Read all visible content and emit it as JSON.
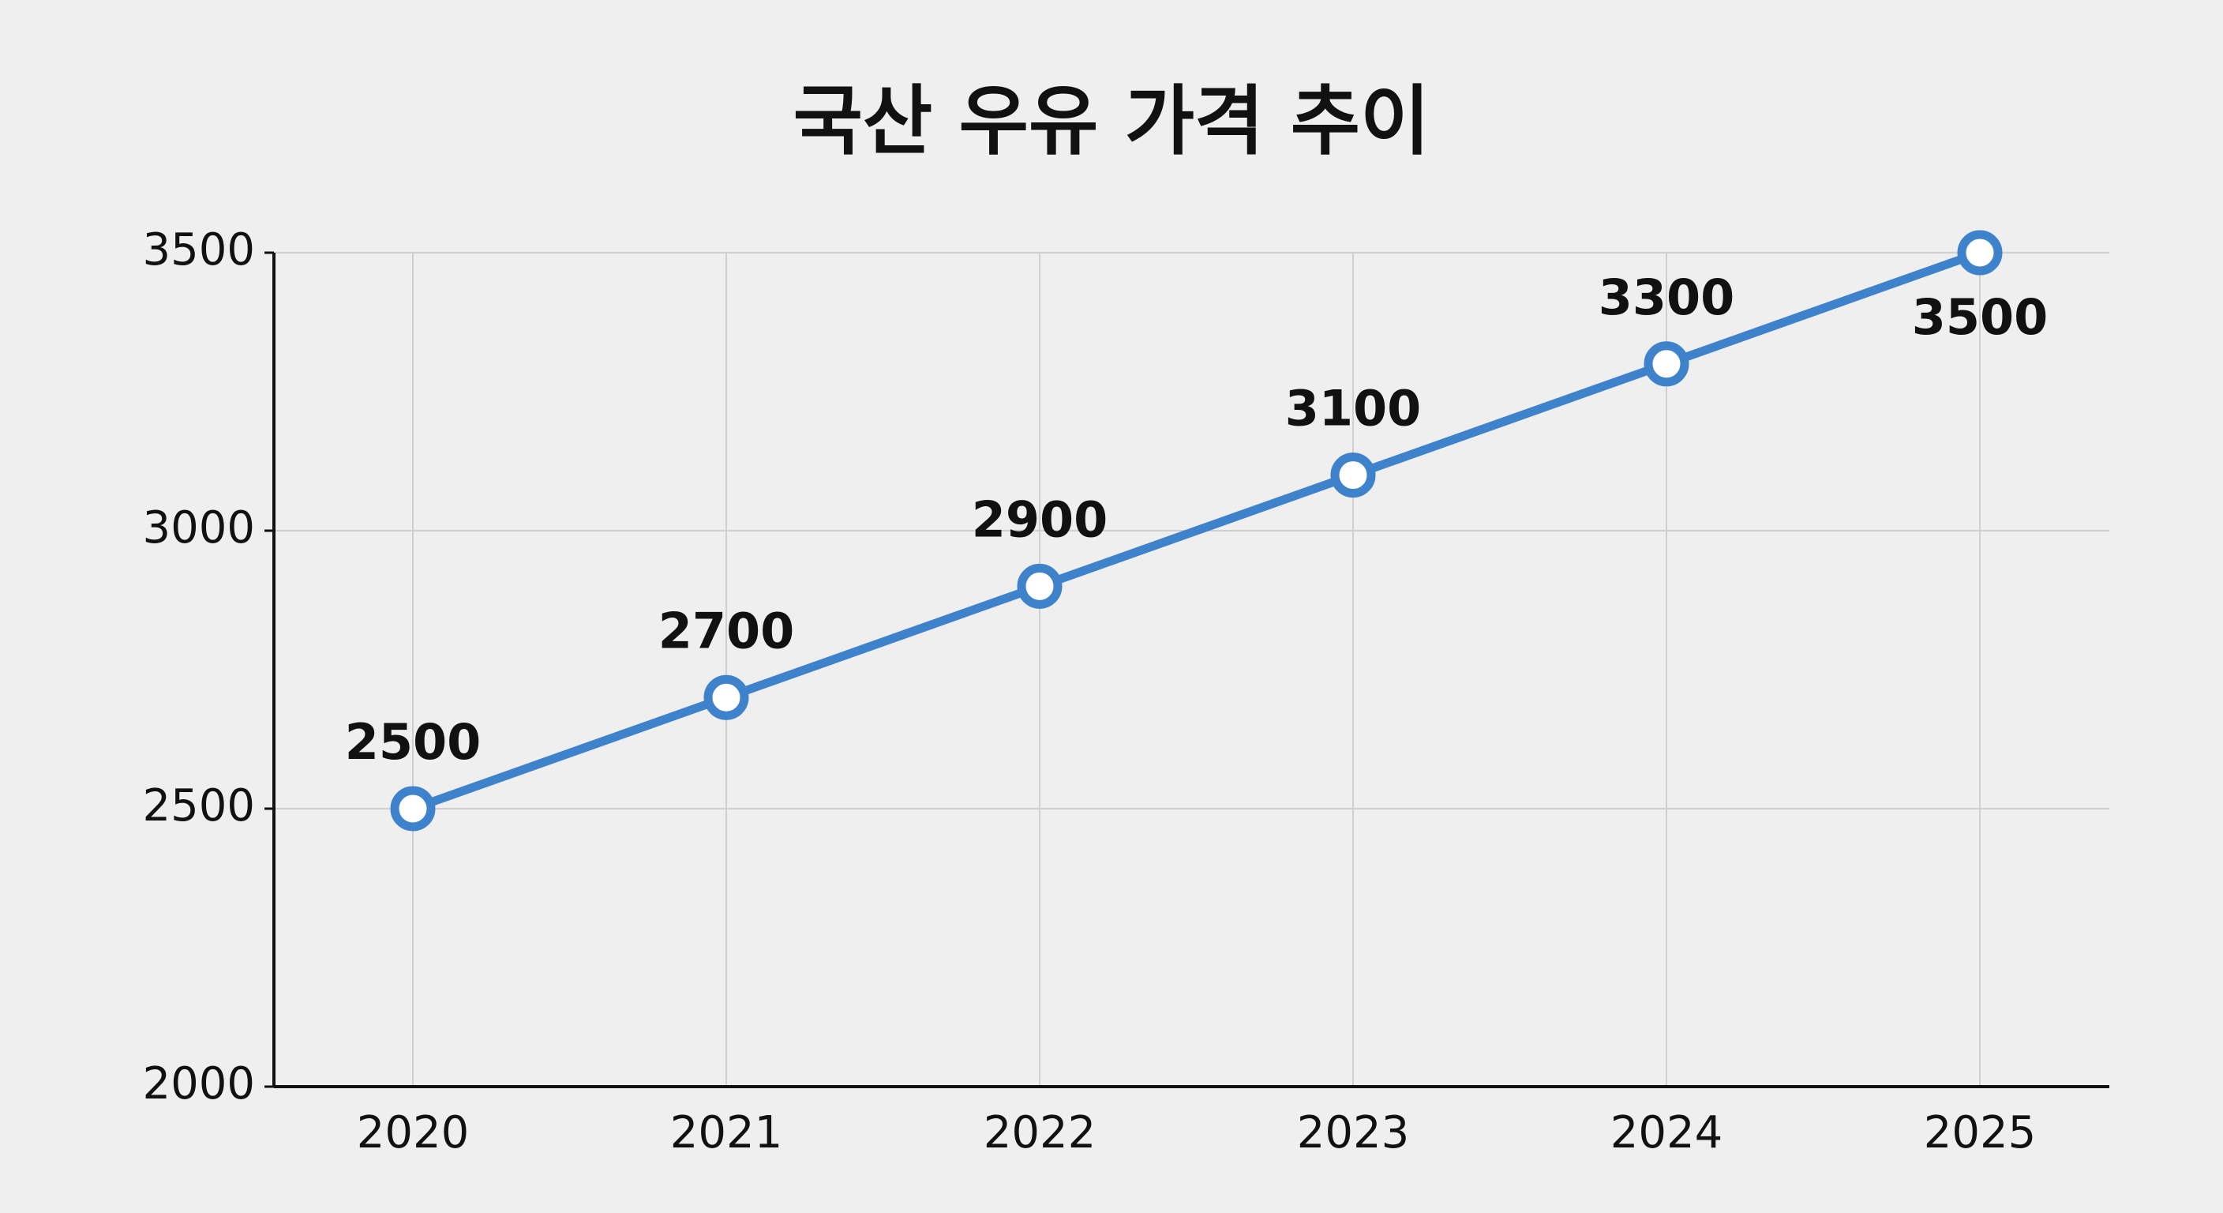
{
  "chart_data": {
    "type": "line",
    "title": "국산 우유 가격 추이",
    "categories": [
      "2020",
      "2021",
      "2022",
      "2023",
      "2024",
      "2025"
    ],
    "values": [
      2500,
      2700,
      2900,
      3100,
      3300,
      3500
    ],
    "color": "#3f82cc",
    "ylim": [
      2000,
      3500
    ],
    "yticks": [
      2000,
      2500,
      3000,
      3500
    ],
    "grid": true
  }
}
